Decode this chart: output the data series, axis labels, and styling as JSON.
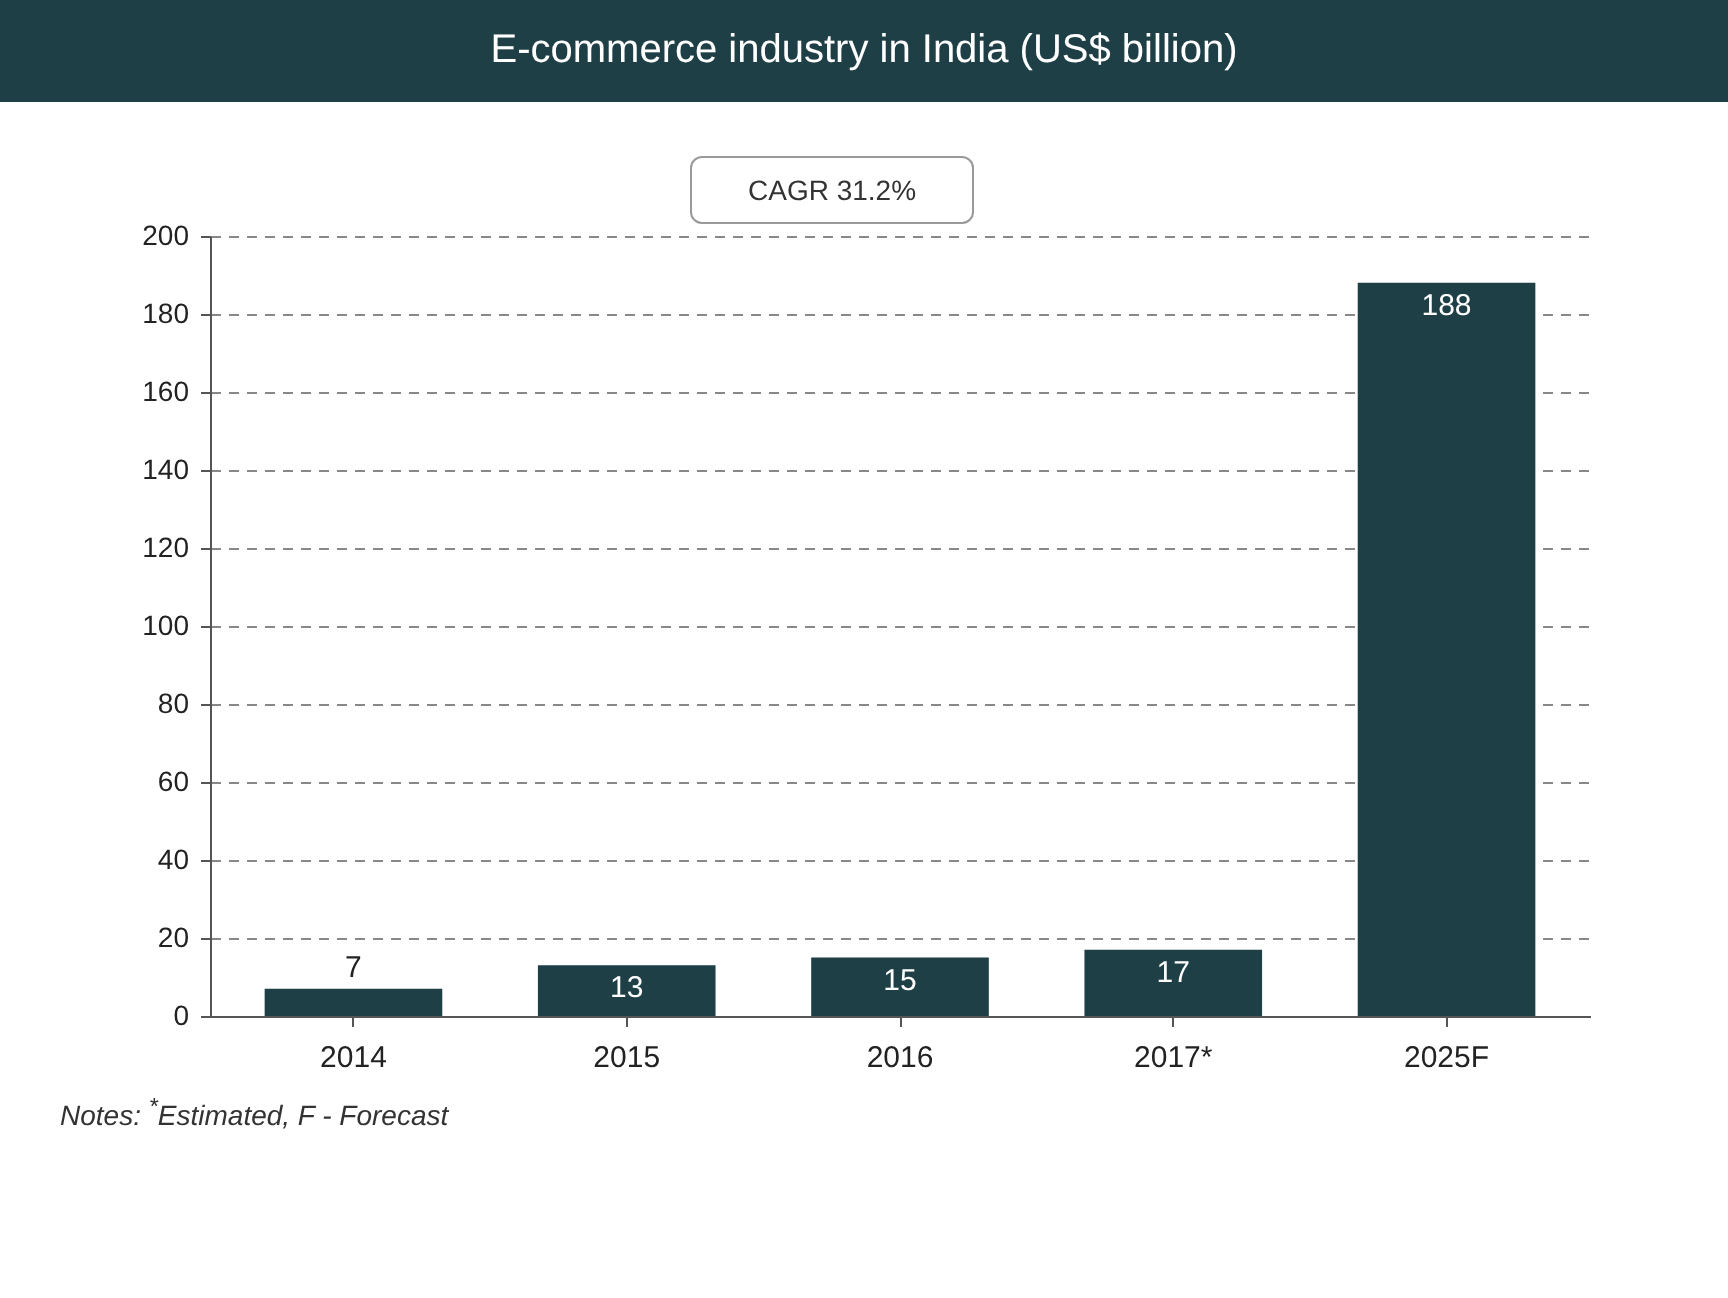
{
  "chart_data": {
    "type": "bar",
    "title": "E-commerce industry in India (US$ billion)",
    "categories": [
      "2014",
      "2015",
      "2016",
      "2017*",
      "2025F"
    ],
    "values": [
      7,
      13,
      15,
      17,
      188
    ],
    "color": "#1f3f47",
    "ylim": [
      0,
      200
    ],
    "yticks": [
      0,
      20,
      40,
      60,
      80,
      100,
      120,
      140,
      160,
      180,
      200
    ],
    "grid": "y",
    "line_style": "dashed",
    "data_labels": true,
    "annotations": [
      "CAGR 31.2%",
      "Notes: $^{*}$Estimated, F - Forecast"
    ]
  }
}
